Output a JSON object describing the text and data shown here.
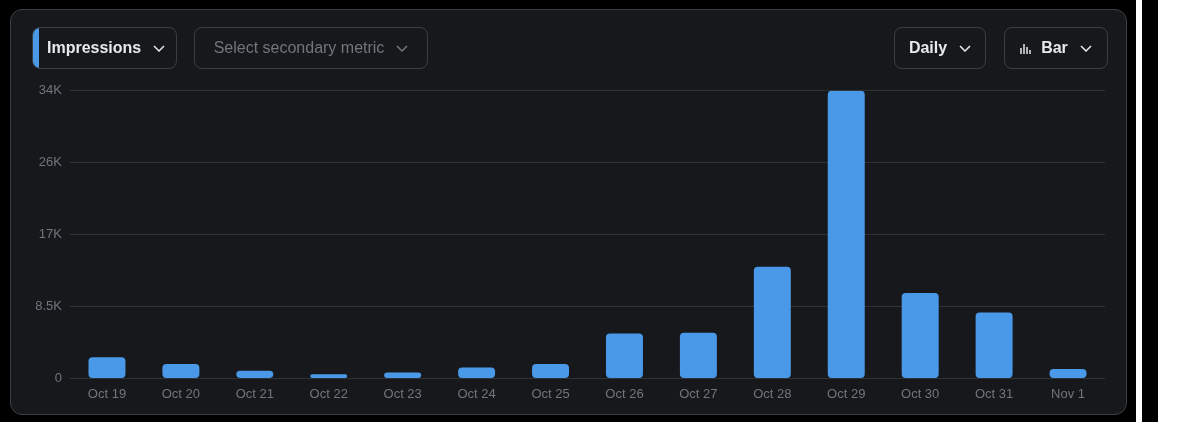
{
  "chart_data": {
    "type": "bar",
    "categories": [
      "Oct 19",
      "Oct 20",
      "Oct 21",
      "Oct 22",
      "Oct 23",
      "Oct 24",
      "Oct 25",
      "Oct 26",
      "Oct 27",
      "Oct 28",
      "Oct 29",
      "Oct 30",
      "Oct 31",
      "Nov 1"
    ],
    "series": [
      {
        "name": "Impressions",
        "color": "#4a99e9",
        "values": [
          2500,
          1700,
          900,
          500,
          700,
          1300,
          1700,
          5300,
          5400,
          13200,
          34000,
          10100,
          7800,
          1100
        ]
      }
    ],
    "ylim": [
      0,
      34000
    ],
    "yticks": [
      0,
      {
        "value": 8500,
        "label": "8.5K"
      },
      {
        "value": 17000,
        "label": "17K"
      },
      {
        "value": 25500,
        "label": "26K"
      },
      {
        "value": 34000,
        "label": "34K"
      }
    ],
    "grid": "y",
    "legend": "top left",
    "annotations": [
      "Select secondary metric",
      "Daily",
      "Bar"
    ]
  }
}
